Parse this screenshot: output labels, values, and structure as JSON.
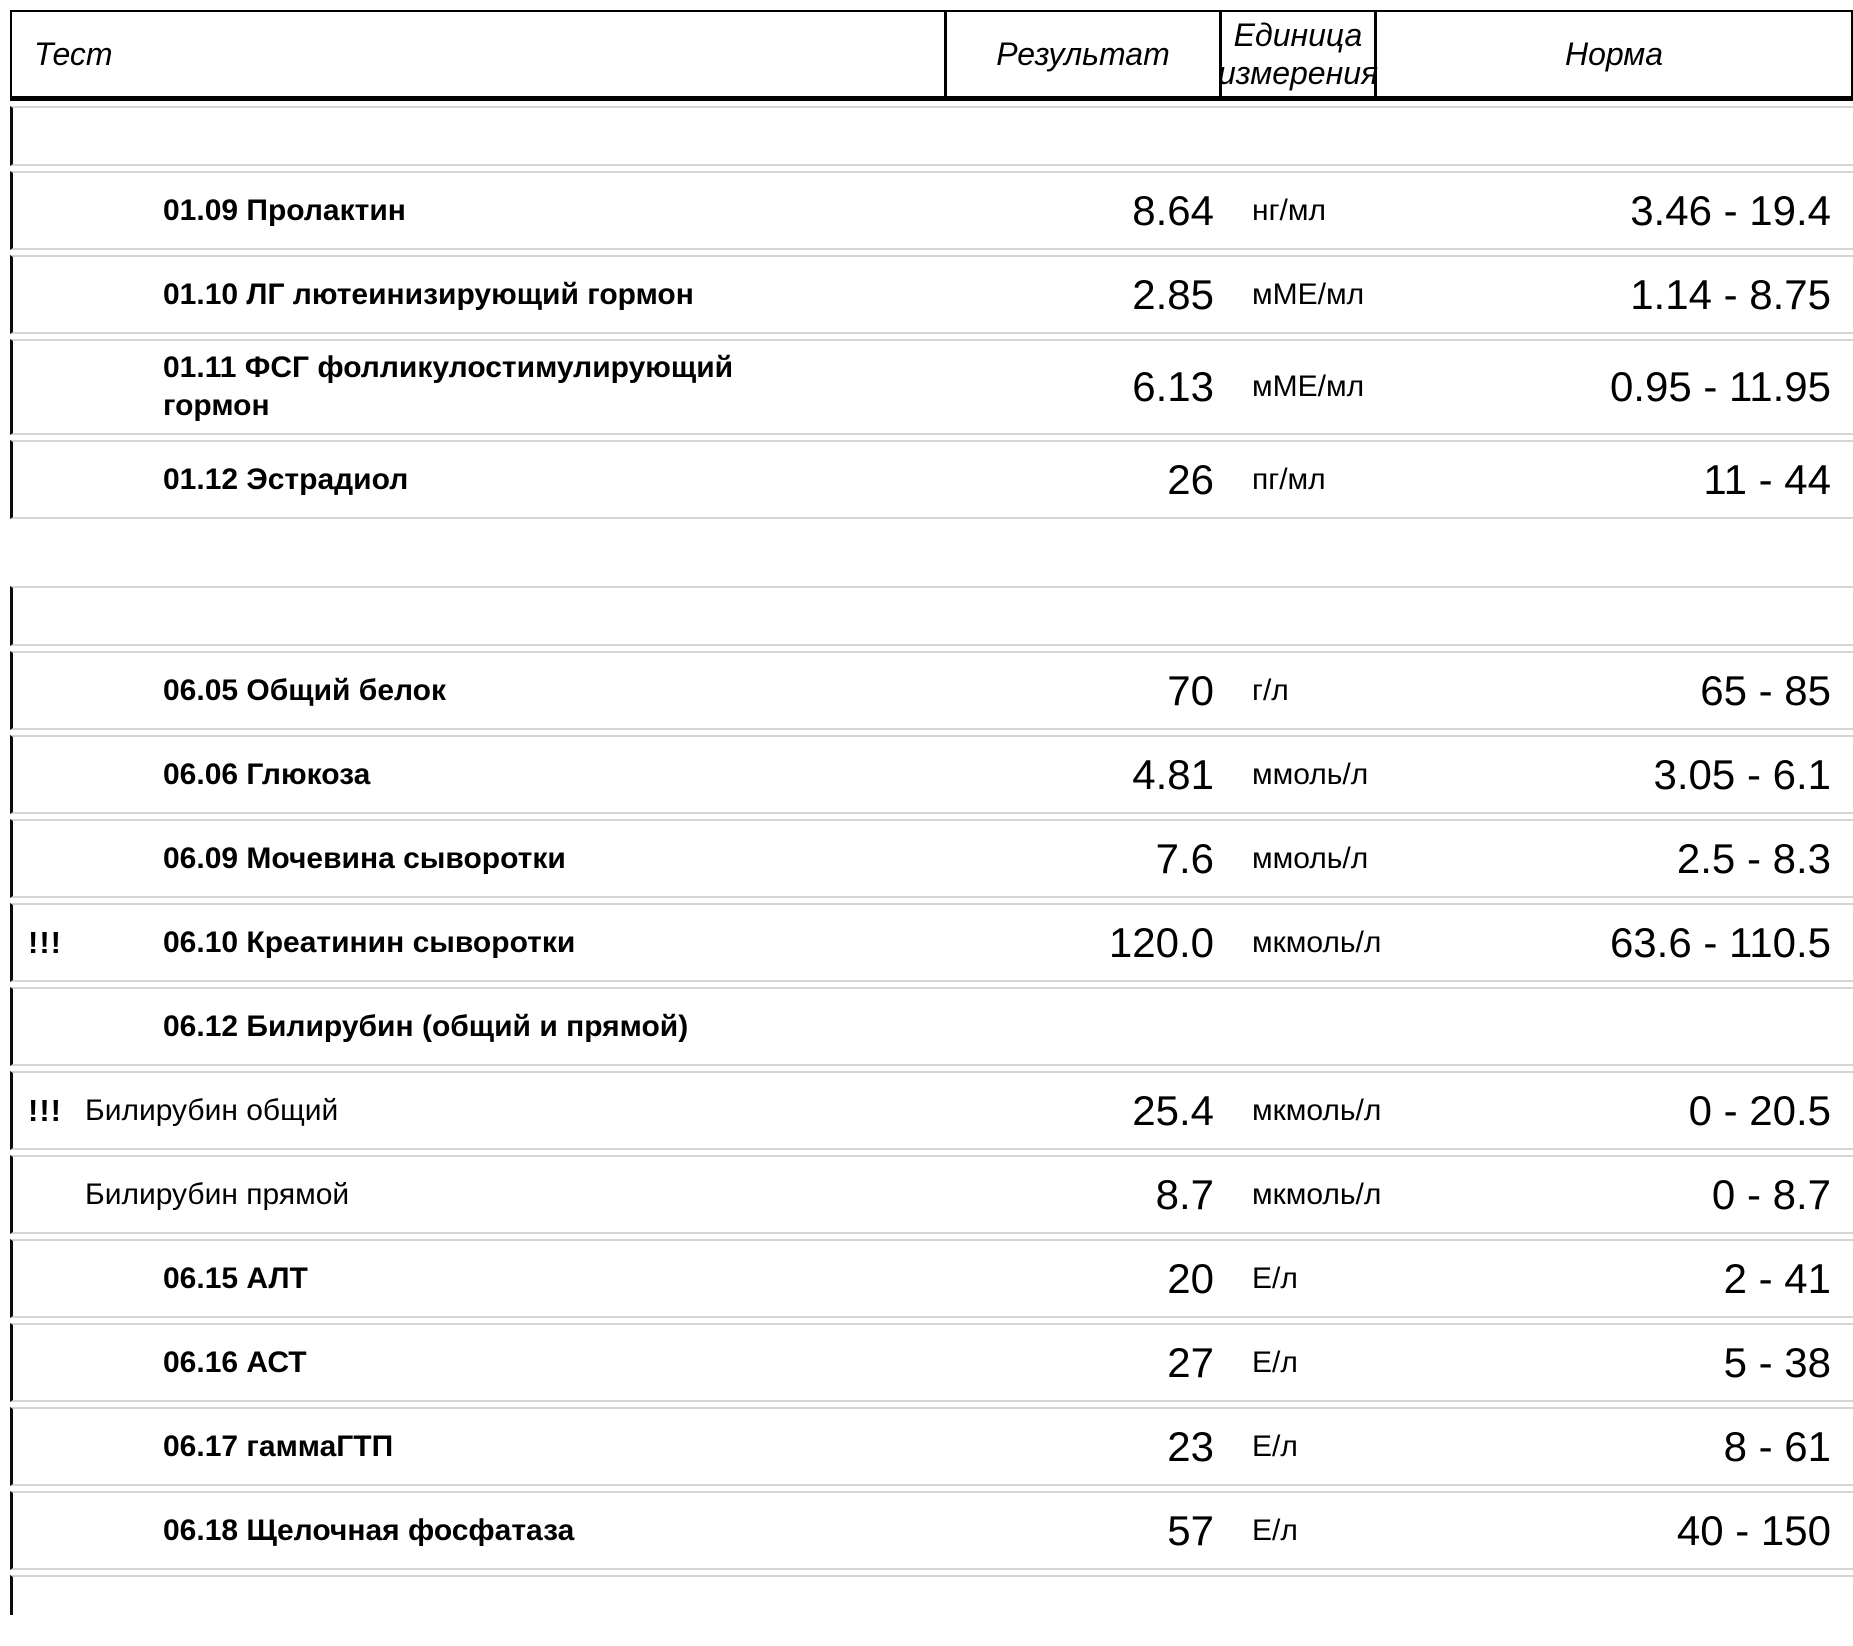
{
  "header": {
    "test": "Тест",
    "result": "Результат",
    "unit": "Единица измерения",
    "norm": "Норма"
  },
  "flag_symbol": "!!!",
  "sections": [
    {
      "rows": [
        {
          "flag": "",
          "name": "01.09 Пролактин",
          "sub": false,
          "result": "8.64",
          "unit": "нг/мл",
          "norm": "3.46 - 19.4"
        },
        {
          "flag": "",
          "name": "01.10 ЛГ лютеинизирующий гормон",
          "sub": false,
          "result": "2.85",
          "unit": "мМЕ/мл",
          "norm": "1.14 - 8.75"
        },
        {
          "flag": "",
          "name": "01.11 ФСГ фолликулостимулирующий гормон",
          "sub": false,
          "result": "6.13",
          "unit": "мМЕ/мл",
          "norm": "0.95 - 11.95"
        },
        {
          "flag": "",
          "name": "01.12 Эстрадиол",
          "sub": false,
          "result": "26",
          "unit": "пг/мл",
          "norm": "11 - 44"
        }
      ]
    },
    {
      "rows": [
        {
          "flag": "",
          "name": "06.05 Общий белок",
          "sub": false,
          "result": "70",
          "unit": "г/л",
          "norm": "65 - 85"
        },
        {
          "flag": "",
          "name": "06.06 Глюкоза",
          "sub": false,
          "result": "4.81",
          "unit": "ммоль/л",
          "norm": "3.05 - 6.1"
        },
        {
          "flag": "",
          "name": "06.09 Мочевина сыворотки",
          "sub": false,
          "result": "7.6",
          "unit": "ммоль/л",
          "norm": "2.5 - 8.3"
        },
        {
          "flag": "!!!",
          "name": "06.10 Креатинин сыворотки",
          "sub": false,
          "result": "120.0",
          "unit": "мкмоль/л",
          "norm": "63.6 - 110.5"
        },
        {
          "flag": "",
          "name": "06.12 Билирубин (общий и прямой)",
          "sub": false,
          "result": "",
          "unit": "",
          "norm": ""
        },
        {
          "flag": "!!!",
          "name": "Билирубин общий",
          "sub": true,
          "result": "25.4",
          "unit": "мкмоль/л",
          "norm": "0 - 20.5"
        },
        {
          "flag": "",
          "name": "Билирубин прямой",
          "sub": true,
          "result": "8.7",
          "unit": "мкмоль/л",
          "norm": "0 - 8.7"
        },
        {
          "flag": "",
          "name": "06.15 АЛТ",
          "sub": false,
          "result": "20",
          "unit": "Е/л",
          "norm": "2 - 41"
        },
        {
          "flag": "",
          "name": "06.16 АСТ",
          "sub": false,
          "result": "27",
          "unit": "Е/л",
          "norm": "5 - 38"
        },
        {
          "flag": "",
          "name": "06.17 гаммаГТП",
          "sub": false,
          "result": "23",
          "unit": "Е/л",
          "norm": "8 - 61"
        },
        {
          "flag": "",
          "name": "06.18 Щелочная фосфатаза",
          "sub": false,
          "result": "57",
          "unit": "Е/л",
          "norm": "40 - 150"
        }
      ]
    }
  ]
}
